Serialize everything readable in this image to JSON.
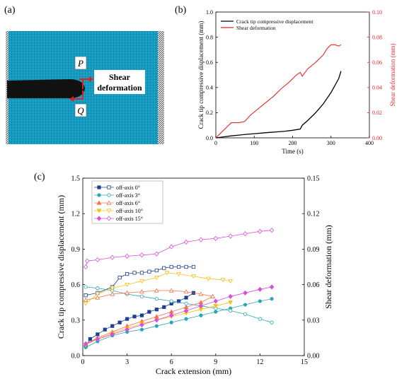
{
  "panel_a": {
    "label": "(a)",
    "label_p": "P",
    "label_q": "Q",
    "shear_label_line1": "Shear",
    "shear_label_line2": "deformation",
    "colors": {
      "mesh": "#1aa3c9",
      "crack": "#111111",
      "arrow": "#e0201b"
    }
  },
  "panel_b": {
    "label": "(b)"
  },
  "panel_c": {
    "label": "(c)"
  },
  "chart_data": [
    {
      "type": "line",
      "xlabel": "Time (s)",
      "ylabel": "Crack tip compressive displacement (mm)",
      "y2label": "Shear deformation (mm)",
      "xlim": [
        0,
        400
      ],
      "ylim": [
        0,
        1.0
      ],
      "y2lim": [
        0,
        0.1
      ],
      "xticks": [
        "0",
        "100",
        "200",
        "300",
        "400"
      ],
      "yticks": [
        "0.0",
        "0.2",
        "0.4",
        "0.6",
        "0.8",
        "1.0"
      ],
      "y2ticks": [
        "0.00",
        "0.02",
        "0.04",
        "0.06",
        "0.08",
        "0.10"
      ],
      "legend_position": "top-left",
      "series": [
        {
          "name": "Crack tip compressive displacement",
          "axis": "left",
          "color": "#000000",
          "x": [
            0,
            20,
            40,
            60,
            80,
            100,
            120,
            140,
            160,
            180,
            200,
            220,
            225,
            240,
            260,
            280,
            300,
            320,
            326
          ],
          "y": [
            0,
            0.008,
            0.016,
            0.022,
            0.028,
            0.033,
            0.038,
            0.043,
            0.048,
            0.053,
            0.06,
            0.07,
            0.1,
            0.14,
            0.2,
            0.27,
            0.36,
            0.47,
            0.53
          ]
        },
        {
          "name": "Shear deformation",
          "axis": "right",
          "color": "#e8282b",
          "x": [
            0,
            10,
            20,
            30,
            40,
            60,
            75,
            90,
            110,
            130,
            150,
            170,
            190,
            210,
            220,
            225,
            240,
            260,
            280,
            290,
            300,
            310,
            320,
            326
          ],
          "y": [
            0,
            0.003,
            0.006,
            0.009,
            0.012,
            0.012,
            0.013,
            0.018,
            0.023,
            0.028,
            0.033,
            0.039,
            0.044,
            0.05,
            0.052,
            0.049,
            0.055,
            0.06,
            0.066,
            0.071,
            0.074,
            0.074,
            0.073,
            0.074
          ]
        }
      ]
    },
    {
      "type": "scatter",
      "xlabel": "Crack extension (mm)",
      "ylabel": "Crack tip compressive displacement (mm)",
      "y2label": "Shear deformation (mm)",
      "xlim": [
        0,
        15
      ],
      "ylim": [
        0,
        1.5
      ],
      "y2lim": [
        0,
        0.15
      ],
      "xticks": [
        "0",
        "3",
        "6",
        "9",
        "12",
        "15"
      ],
      "yticks": [
        "0.0",
        "0.3",
        "0.6",
        "0.9",
        "1.2",
        "1.5"
      ],
      "y2ticks": [
        "0.00",
        "0.03",
        "0.06",
        "0.09",
        "0.12",
        "0.15"
      ],
      "legend_position": "top-left",
      "series": [
        {
          "name": "off-axis 0°",
          "color": "#1f3f8f",
          "marker": "square",
          "x_filled": [
            0.2,
            0.5,
            1.0,
            1.5,
            2.0,
            2.5,
            3.0,
            3.5,
            4.0,
            4.5,
            5.0,
            5.5,
            6.0,
            6.5,
            7.0,
            7.5
          ],
          "y_filled": [
            0.08,
            0.14,
            0.18,
            0.22,
            0.25,
            0.28,
            0.31,
            0.33,
            0.34,
            0.37,
            0.39,
            0.41,
            0.44,
            0.46,
            0.49,
            0.53
          ],
          "x_open": [
            0.2,
            1.0,
            2.0,
            2.5,
            3.0,
            3.5,
            4.0,
            4.5,
            5.0,
            5.5,
            6.0,
            6.5,
            7.0,
            7.5
          ],
          "y_open": [
            0.51,
            0.53,
            0.58,
            0.66,
            0.69,
            0.7,
            0.7,
            0.71,
            0.72,
            0.74,
            0.75,
            0.75,
            0.75,
            0.75
          ]
        },
        {
          "name": "off-axis 3°",
          "color": "#2aa6b8",
          "marker": "circle",
          "x_filled": [
            0.2,
            1.0,
            2.0,
            3.0,
            4.0,
            5.0,
            6.0,
            7.0,
            8.0,
            9.0,
            10.0,
            11.0,
            12.0,
            12.8
          ],
          "y_filled": [
            0.07,
            0.12,
            0.17,
            0.2,
            0.22,
            0.25,
            0.28,
            0.31,
            0.34,
            0.37,
            0.4,
            0.43,
            0.46,
            0.48
          ],
          "x_open": [
            0.2,
            1.0,
            2.0,
            3.0,
            4.0,
            5.0,
            6.0,
            7.0,
            8.0,
            9.0,
            10.0,
            11.0,
            12.0,
            12.8
          ],
          "y_open": [
            0.58,
            0.57,
            0.55,
            0.52,
            0.5,
            0.48,
            0.46,
            0.44,
            0.42,
            0.4,
            0.38,
            0.35,
            0.31,
            0.28
          ]
        },
        {
          "name": "off-axis 6°",
          "color": "#f0704a",
          "marker": "triangle",
          "x_filled": [
            0.2,
            1.0,
            2.0,
            3.0,
            4.0,
            5.0,
            6.0,
            7.0,
            8.0,
            8.8
          ],
          "y_filled": [
            0.1,
            0.15,
            0.2,
            0.25,
            0.29,
            0.33,
            0.37,
            0.41,
            0.45,
            0.5
          ],
          "x_open": [
            0.2,
            1.0,
            2.0,
            3.0,
            4.0,
            5.0,
            6.0,
            7.0,
            8.0,
            8.8
          ],
          "y_open": [
            0.47,
            0.49,
            0.52,
            0.53,
            0.54,
            0.55,
            0.55,
            0.54,
            0.52,
            0.5
          ]
        },
        {
          "name": "off-axis 10°",
          "color": "#f5c012",
          "marker": "triangle-down",
          "x_filled": [
            0.2,
            1.0,
            2.0,
            3.0,
            4.0,
            5.0,
            6.0,
            7.0,
            8.0,
            9.0,
            10.0
          ],
          "y_filled": [
            0.09,
            0.14,
            0.19,
            0.23,
            0.27,
            0.3,
            0.33,
            0.36,
            0.39,
            0.42,
            0.45
          ],
          "x_open": [
            0.2,
            1.0,
            2.0,
            3.0,
            4.0,
            5.0,
            5.7,
            6.5,
            7.5,
            8.5,
            9.5,
            10.0
          ],
          "y_open": [
            0.44,
            0.52,
            0.57,
            0.6,
            0.63,
            0.66,
            0.7,
            0.69,
            0.67,
            0.65,
            0.64,
            0.63
          ]
        },
        {
          "name": "off-axis 15°",
          "color": "#d94fd9",
          "marker": "diamond",
          "x_filled": [
            0.2,
            1.0,
            2.0,
            3.0,
            4.0,
            5.0,
            6.0,
            7.0,
            8.0,
            9.0,
            10.0,
            11.0,
            12.0,
            12.8
          ],
          "y_filled": [
            0.1,
            0.14,
            0.18,
            0.22,
            0.26,
            0.3,
            0.34,
            0.38,
            0.42,
            0.46,
            0.5,
            0.53,
            0.56,
            0.58
          ],
          "x_open": [
            0.2,
            0.3,
            1.0,
            2.0,
            3.0,
            4.0,
            5.0,
            6.0,
            7.0,
            8.0,
            9.0,
            10.0,
            11.0,
            12.0,
            12.8
          ],
          "y_open": [
            0.75,
            0.8,
            0.81,
            0.83,
            0.84,
            0.85,
            0.86,
            0.92,
            0.96,
            0.98,
            0.99,
            1.01,
            1.03,
            1.05,
            1.06
          ]
        }
      ]
    }
  ]
}
